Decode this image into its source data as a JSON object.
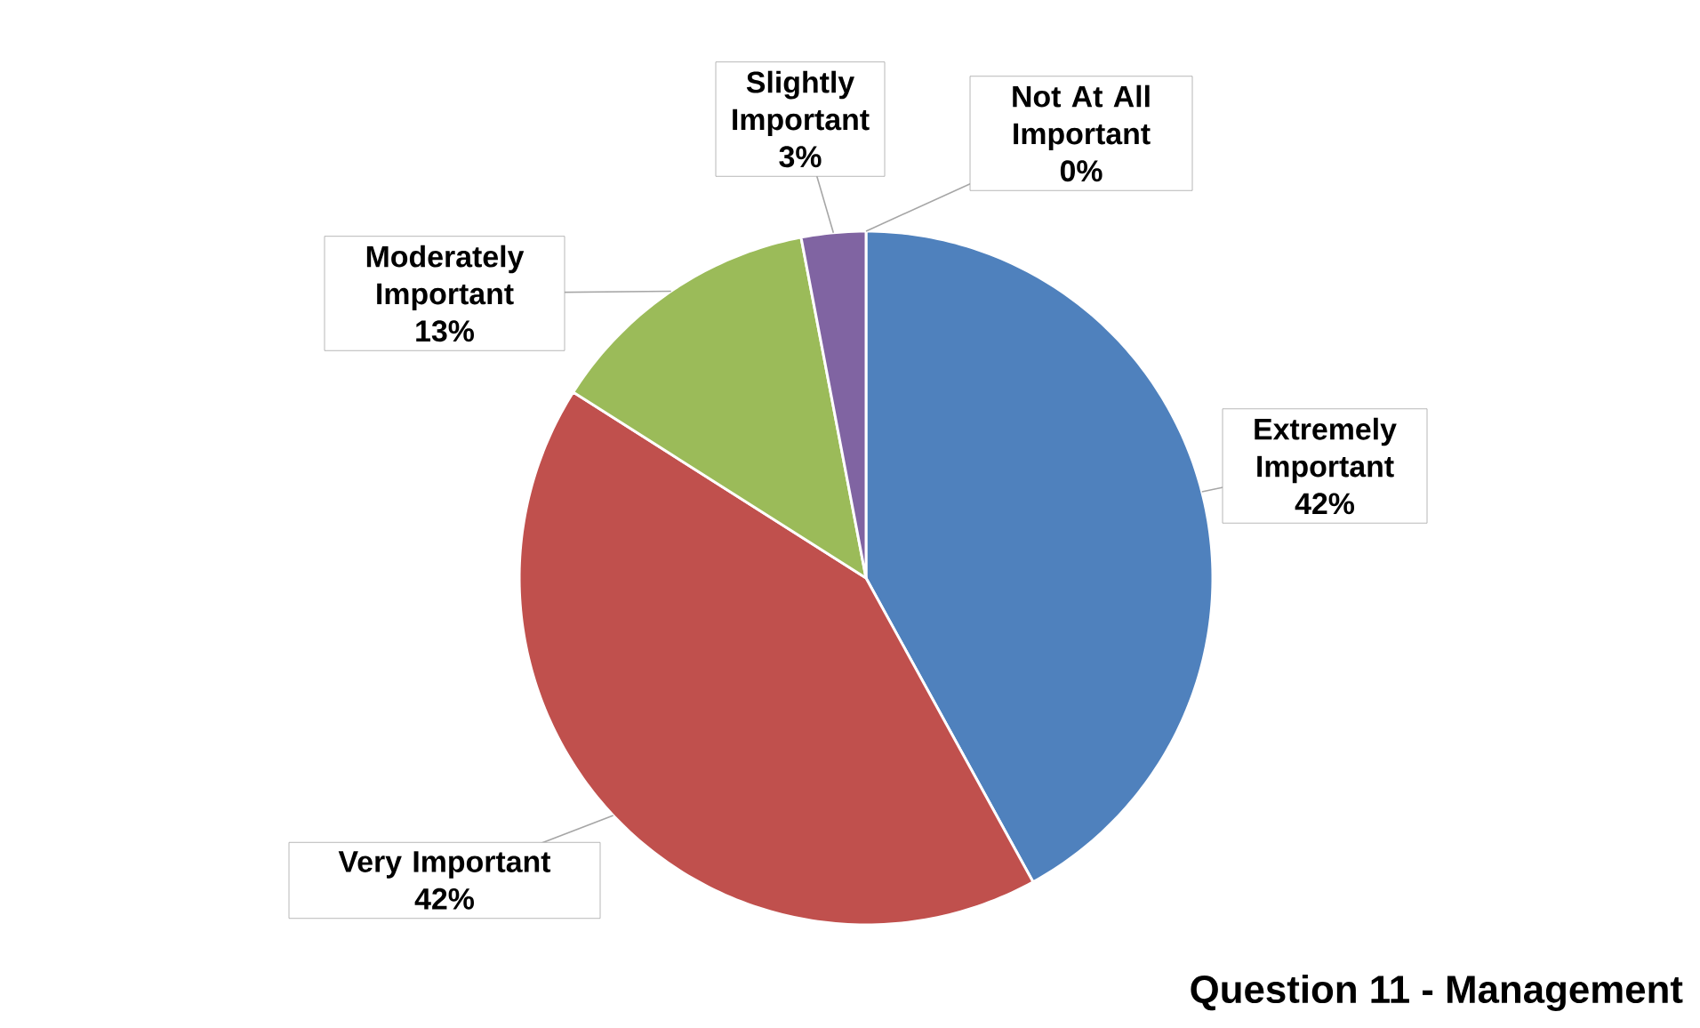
{
  "chart_data": {
    "type": "pie",
    "title": "Question 11 - Management",
    "categories": [
      "Extremely Important",
      "Very Important",
      "Moderately Important",
      "Slightly Important",
      "Not At All Important"
    ],
    "values": [
      42,
      42,
      13,
      3,
      0
    ],
    "value_labels": [
      "42%",
      "42%",
      "13%",
      "3%",
      "0%"
    ],
    "colors": [
      "#4f81bd",
      "#c0504d",
      "#9bbb59",
      "#8064a2",
      "#4bacc6"
    ]
  }
}
